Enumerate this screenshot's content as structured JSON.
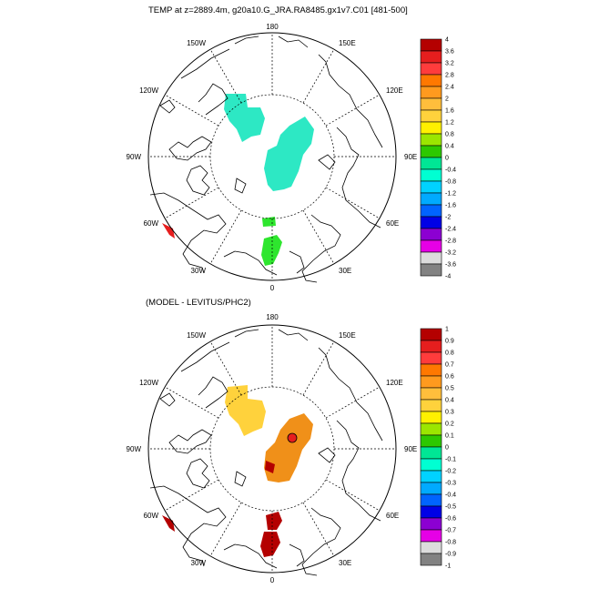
{
  "top_panel": {
    "title": "TEMP at z=2889.4m, g20a10.G_JRA.RA8485.gx1v7.C01 [481-500]",
    "lon_labels": [
      "180",
      "150E",
      "120E",
      "90E",
      "60E",
      "30E",
      "0",
      "30W",
      "60W",
      "90W",
      "120W",
      "150W"
    ],
    "colorbar": {
      "levels": [
        "4",
        "3.6",
        "3.2",
        "2.8",
        "2.4",
        "2",
        "1.6",
        "1.2",
        "0.8",
        "0.4",
        "0",
        "-0.4",
        "-0.8",
        "-1.2",
        "-1.6",
        "-2",
        "-2.4",
        "-2.8",
        "-3.2",
        "-3.6",
        "-4"
      ],
      "colors": [
        "#b40000",
        "#e61e1e",
        "#ff3c3c",
        "#ff7800",
        "#ff9a1e",
        "#ffbe3c",
        "#ffd23c",
        "#fff000",
        "#9be600",
        "#2dc800",
        "#00e695",
        "#00ffd2",
        "#00d2ff",
        "#00aaff",
        "#0064ff",
        "#0000e6",
        "#8c00d2",
        "#e600e6",
        "#dcdcdc",
        "#828282"
      ]
    }
  },
  "bottom_panel": {
    "title": "(MODEL - LEVITUS/PHC2)",
    "lon_labels": [
      "180",
      "150E",
      "120E",
      "90E",
      "60E",
      "30E",
      "0",
      "30W",
      "60W",
      "90W",
      "120W",
      "150W"
    ],
    "colorbar": {
      "levels": [
        "1",
        "0.9",
        "0.8",
        "0.7",
        "0.6",
        "0.5",
        "0.4",
        "0.3",
        "0.2",
        "0.1",
        "0",
        "-0.1",
        "-0.2",
        "-0.3",
        "-0.4",
        "-0.5",
        "-0.6",
        "-0.7",
        "-0.8",
        "-0.9",
        "-1"
      ],
      "colors": [
        "#b40000",
        "#e61e1e",
        "#ff3c3c",
        "#ff7800",
        "#ff9a1e",
        "#ffbe3c",
        "#ffd23c",
        "#fff000",
        "#9be600",
        "#2dc800",
        "#00e695",
        "#00ffd2",
        "#00d2ff",
        "#00aaff",
        "#0064ff",
        "#0000e6",
        "#8c00d2",
        "#e600e6",
        "#dcdcdc",
        "#828282"
      ]
    }
  },
  "fill_colors": {
    "top_cyan": "#2de8c4",
    "top_green": "#2ee62e",
    "top_red": "#e61e1e",
    "bottom_yellow": "#ffd23c",
    "bottom_orange": "#f09019",
    "bottom_darkred": "#b40000"
  }
}
